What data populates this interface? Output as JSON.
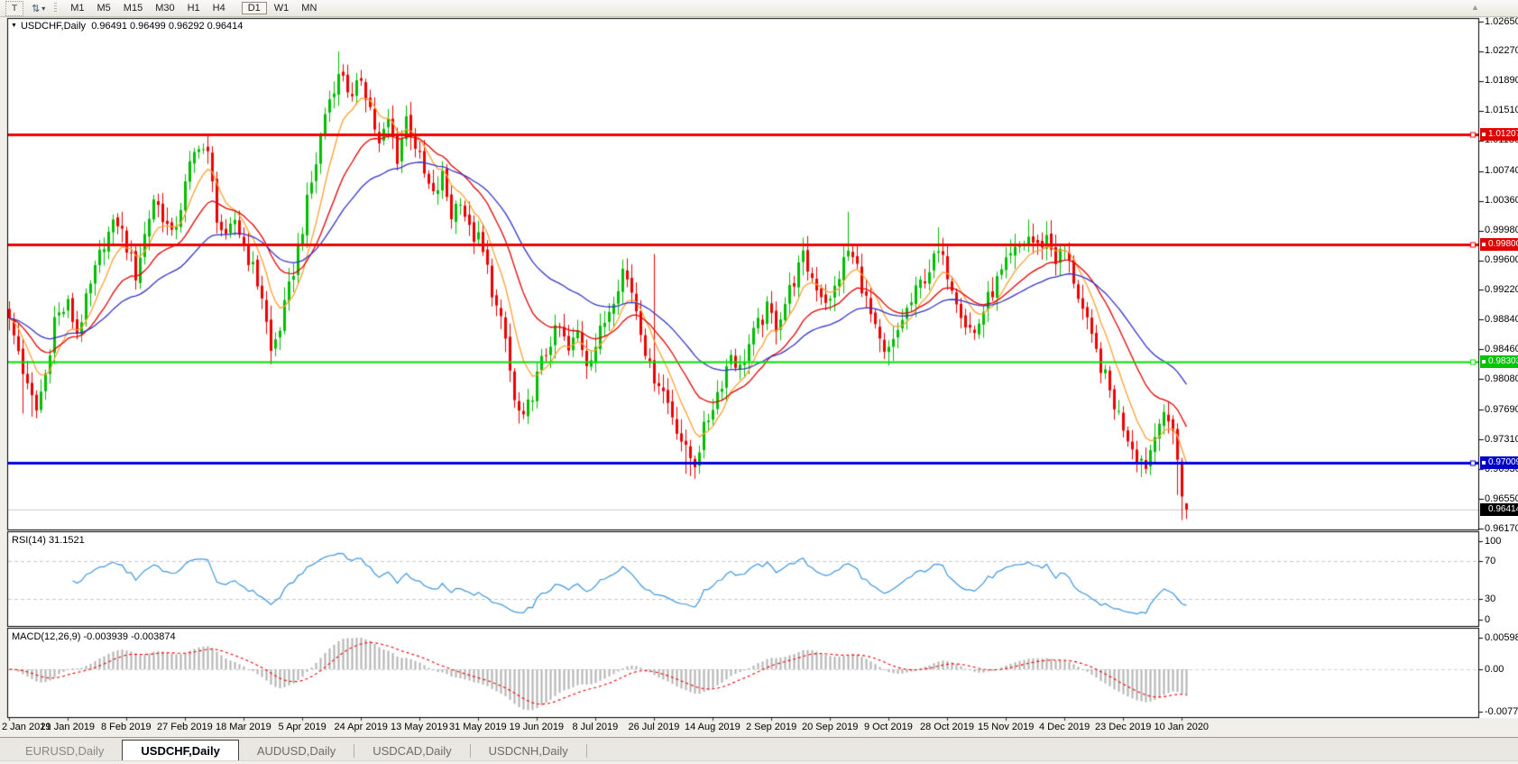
{
  "toolbar": {
    "text_tool_label": "T",
    "arrange_icon_glyph": "⇅",
    "caret_glyph": "▾",
    "overflow_glyph": "▲",
    "timeframe_groups": [
      [
        "M1",
        "M5",
        "M15",
        "M30",
        "H1",
        "H4"
      ],
      [
        "D1",
        "W1",
        "MN"
      ]
    ],
    "active_timeframe": "D1"
  },
  "chart": {
    "collapse_triangle": "▼",
    "title": "USDCHF,Daily",
    "ohlc_text": "0.96491 0.96499 0.96292 0.96414"
  },
  "chart_data": {
    "type": "candlestick",
    "symbol": "USDCHF",
    "timeframe": "Daily",
    "ohlc_display": {
      "open": "0.96491",
      "high": "0.96499",
      "low": "0.96292",
      "close": "0.96414"
    },
    "axis": {
      "top": 1.0265,
      "bottom": 0.9617
    },
    "price_axis_labels": [
      "1.02650",
      "1.02270",
      "1.01890",
      "1.01510",
      "1.01130",
      "1.00740",
      "1.00360",
      "0.99980",
      "0.99600",
      "0.99220",
      "0.98840",
      "0.98460",
      "0.98080",
      "0.97690",
      "0.97310",
      "0.96930",
      "0.96550",
      "0.96170"
    ],
    "horizontal_lines": [
      {
        "price": 1.01207,
        "label": "1.01207",
        "color": "#F20000",
        "box_color": "#E00000",
        "width": 3
      },
      {
        "price": 0.998,
        "label": "0.99800",
        "color": "#F20000",
        "box_color": "#E00000",
        "width": 3
      },
      {
        "price": 0.98303,
        "label": "0.98303",
        "color": "#00E000",
        "box_color": "#00C400",
        "width": 2
      },
      {
        "price": 0.97009,
        "label": "0.97009",
        "color": "#0000DC",
        "box_color": "#0000C8",
        "width": 3
      }
    ],
    "current_price": {
      "value": 0.96414,
      "label": "0.96414",
      "box_color": "#000000",
      "line_color": "#C9C9C9"
    },
    "x_axis_labels": [
      [
        0,
        "2 Jan 2019"
      ],
      [
        13,
        "21 Jan 2019"
      ],
      [
        26,
        "8 Feb 2019"
      ],
      [
        39,
        "27 Feb 2019"
      ],
      [
        52,
        "18 Mar 2019"
      ],
      [
        65,
        "5 Apr 2019"
      ],
      [
        78,
        "24 Apr 2019"
      ],
      [
        91,
        "13 May 2019"
      ],
      [
        104,
        "31 May 2019"
      ],
      [
        117,
        "19 Jun 2019"
      ],
      [
        130,
        "8 Jul 2019"
      ],
      [
        143,
        "26 Jul 2019"
      ],
      [
        156,
        "14 Aug 2019"
      ],
      [
        169,
        "2 Sep 2019"
      ],
      [
        182,
        "20 Sep 2019"
      ],
      [
        195,
        "9 Oct 2019"
      ],
      [
        208,
        "28 Oct 2019"
      ],
      [
        221,
        "15 Nov 2019"
      ],
      [
        234,
        "4 Dec 2019"
      ],
      [
        247,
        "23 Dec 2019"
      ],
      [
        260,
        "10 Jan 2020"
      ]
    ],
    "num_candles": 262,
    "candle_up_color": "#00BE00",
    "candle_down_color": "#EF0000",
    "close_waypoints": [
      [
        0,
        0.988
      ],
      [
        2,
        0.9845
      ],
      [
        4,
        0.9795
      ],
      [
        6,
        0.9768
      ],
      [
        8,
        0.9815
      ],
      [
        10,
        0.9885
      ],
      [
        13,
        0.9902
      ],
      [
        15,
        0.9868
      ],
      [
        18,
        0.9925
      ],
      [
        21,
        0.9985
      ],
      [
        24,
        1.001
      ],
      [
        26,
        0.9978
      ],
      [
        28,
        0.9942
      ],
      [
        30,
        0.9992
      ],
      [
        32,
        1.004
      ],
      [
        34,
        1.0018
      ],
      [
        36,
        0.9988
      ],
      [
        38,
        1.003
      ],
      [
        40,
        1.0078
      ],
      [
        42,
        1.0112
      ],
      [
        44,
        1.0092
      ],
      [
        46,
        1.0018
      ],
      [
        48,
        0.9982
      ],
      [
        50,
        1.0012
      ],
      [
        52,
        0.998
      ],
      [
        54,
        0.9948
      ],
      [
        56,
        0.9915
      ],
      [
        58,
        0.9842
      ],
      [
        60,
        0.9875
      ],
      [
        62,
        0.9922
      ],
      [
        64,
        0.9975
      ],
      [
        66,
        1.0032
      ],
      [
        68,
        1.0085
      ],
      [
        70,
        1.0148
      ],
      [
        72,
        1.0185
      ],
      [
        74,
        1.02
      ],
      [
        76,
        1.0162
      ],
      [
        78,
        1.0195
      ],
      [
        80,
        1.0155
      ],
      [
        82,
        1.0105
      ],
      [
        84,
        1.0138
      ],
      [
        86,
        1.0092
      ],
      [
        88,
        1.0142
      ],
      [
        90,
        1.0108
      ],
      [
        92,
        1.0068
      ],
      [
        94,
        1.004
      ],
      [
        96,
        1.0066
      ],
      [
        98,
        1.0018
      ],
      [
        100,
        1.0042
      ],
      [
        102,
        0.9996
      ],
      [
        104,
        0.9986
      ],
      [
        106,
        0.9948
      ],
      [
        108,
        0.9898
      ],
      [
        110,
        0.9858
      ],
      [
        112,
        0.9778
      ],
      [
        114,
        0.9752
      ],
      [
        116,
        0.9792
      ],
      [
        118,
        0.9828
      ],
      [
        120,
        0.9858
      ],
      [
        122,
        0.9872
      ],
      [
        124,
        0.9842
      ],
      [
        126,
        0.9868
      ],
      [
        128,
        0.9832
      ],
      [
        130,
        0.9852
      ],
      [
        132,
        0.9882
      ],
      [
        134,
        0.9916
      ],
      [
        136,
        0.9948
      ],
      [
        138,
        0.9922
      ],
      [
        140,
        0.9875
      ],
      [
        142,
        0.982
      ],
      [
        144,
        0.9806
      ],
      [
        146,
        0.9778
      ],
      [
        148,
        0.9748
      ],
      [
        150,
        0.9714
      ],
      [
        152,
        0.9702
      ],
      [
        154,
        0.9742
      ],
      [
        156,
        0.9776
      ],
      [
        158,
        0.9806
      ],
      [
        160,
        0.9842
      ],
      [
        162,
        0.982
      ],
      [
        164,
        0.9852
      ],
      [
        166,
        0.9876
      ],
      [
        168,
        0.9896
      ],
      [
        170,
        0.9878
      ],
      [
        172,
        0.9906
      ],
      [
        174,
        0.9936
      ],
      [
        176,
        0.9962
      ],
      [
        178,
        0.9938
      ],
      [
        180,
        0.9918
      ],
      [
        182,
        0.9905
      ],
      [
        184,
        0.9942
      ],
      [
        186,
        0.9972
      ],
      [
        188,
        0.995
      ],
      [
        190,
        0.9908
      ],
      [
        192,
        0.9868
      ],
      [
        194,
        0.9836
      ],
      [
        196,
        0.9852
      ],
      [
        198,
        0.9886
      ],
      [
        200,
        0.9906
      ],
      [
        202,
        0.993
      ],
      [
        204,
        0.995
      ],
      [
        206,
        0.9968
      ],
      [
        208,
        0.9946
      ],
      [
        210,
        0.9914
      ],
      [
        212,
        0.988
      ],
      [
        214,
        0.9866
      ],
      [
        216,
        0.9896
      ],
      [
        218,
        0.9922
      ],
      [
        220,
        0.9942
      ],
      [
        222,
        0.9962
      ],
      [
        224,
        0.9976
      ],
      [
        226,
        0.999
      ],
      [
        228,
        0.9976
      ],
      [
        230,
        0.999
      ],
      [
        232,
        0.9962
      ],
      [
        234,
        0.9972
      ],
      [
        236,
        0.9936
      ],
      [
        238,
        0.9896
      ],
      [
        240,
        0.9856
      ],
      [
        242,
        0.9826
      ],
      [
        244,
        0.9792
      ],
      [
        246,
        0.9762
      ],
      [
        248,
        0.9736
      ],
      [
        250,
        0.9712
      ],
      [
        252,
        0.97
      ],
      [
        254,
        0.9736
      ],
      [
        256,
        0.9766
      ],
      [
        258,
        0.9742
      ],
      [
        259,
        0.9705
      ],
      [
        260,
        0.9658
      ],
      [
        261,
        0.96414
      ]
    ],
    "wick_overrides": [
      [
        3,
        "l",
        0.9764
      ],
      [
        5,
        "l",
        0.976
      ],
      [
        44,
        "h",
        1.0122
      ],
      [
        73,
        "h",
        1.0227
      ],
      [
        75,
        "h",
        1.021
      ],
      [
        88,
        "h",
        1.0158
      ],
      [
        143,
        "h",
        0.9968
      ],
      [
        150,
        "l",
        0.9687
      ],
      [
        151,
        "l",
        0.9684
      ],
      [
        177,
        "h",
        0.9991
      ],
      [
        186,
        "h",
        1.0022
      ],
      [
        206,
        "h",
        1.0002
      ],
      [
        226,
        "h",
        1.0012
      ],
      [
        251,
        "l",
        0.9683
      ],
      [
        259,
        "l",
        0.966
      ],
      [
        260,
        "l",
        0.9628
      ]
    ],
    "last_candle_ohlc": [
      0.96491,
      0.96499,
      0.96292,
      0.96414
    ],
    "moving_averages": [
      {
        "name": "fast-ma",
        "period": 8,
        "color": "#FFA132"
      },
      {
        "name": "medium-ma",
        "period": 20,
        "color": "#E60000"
      },
      {
        "name": "slow-ma",
        "period": 40,
        "color": "#3434CC"
      }
    ],
    "indicators": {
      "rsi": {
        "label": "RSI(14) 31.1521",
        "period": 14,
        "current": 31.1521,
        "levels": [
          70,
          30
        ],
        "axis_labels": [
          "100",
          "70",
          "30",
          "0"
        ],
        "line_color": "#3E97DE",
        "level_line_color": "#C9C9C9"
      },
      "macd": {
        "label": "MACD(12,26,9) -0.003939 -0.003874",
        "fast": 12,
        "slow": 26,
        "signal": 9,
        "values": [
          "-0.003939",
          "-0.003874"
        ],
        "axis_labels": [
          "0.005986",
          "0.00",
          "-0.007737"
        ],
        "histogram_color": "#B2B2B2",
        "signal_color": "#F00000",
        "zero_line_color": "#D2D2D2"
      }
    }
  },
  "tabs": [
    {
      "label": "EURUSD,Daily",
      "active": false
    },
    {
      "label": "USDCHF,Daily",
      "active": true
    },
    {
      "label": "AUDUSD,Daily",
      "active": false
    },
    {
      "label": "USDCAD,Daily",
      "active": false
    },
    {
      "label": "USDCNH,Daily",
      "active": false
    }
  ]
}
